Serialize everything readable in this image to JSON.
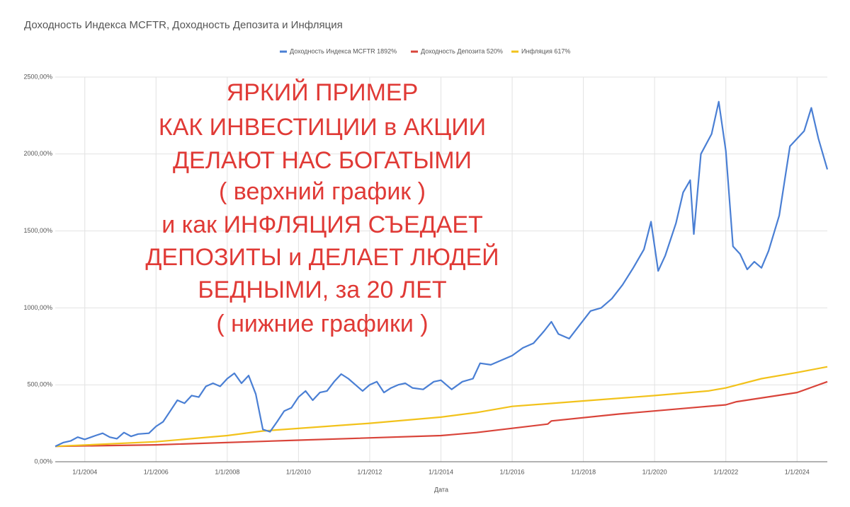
{
  "chart_data": {
    "type": "line",
    "title": "Доходность Индекса MCFTR, Доходность Депозита и Инфляция",
    "x_label": "Дата",
    "annotation": [
      "ЯРКИЙ ПРИМЕР",
      "КАК ИНВЕСТИЦИИ в АКЦИИ",
      "ДЕЛАЮТ НАС БОГАТЫМИ",
      "( верхний график )",
      "и как ИНФЛЯЦИЯ СЪЕДАЕТ",
      "ДЕПОЗИТЫ и ДЕЛАЕТ ЛЮДЕЙ",
      "БЕДНЫМИ, за 20 ЛЕТ",
      "( нижние графики )"
    ],
    "annotation_color": "#e03a36",
    "xlim": [
      2003.17,
      2024.85
    ],
    "xticks": [
      {
        "value": 2004,
        "label": "1/1/2004"
      },
      {
        "value": 2006,
        "label": "1/1/2006"
      },
      {
        "value": 2008,
        "label": "1/1/2008"
      },
      {
        "value": 2010,
        "label": "1/1/2010"
      },
      {
        "value": 2012,
        "label": "1/1/2012"
      },
      {
        "value": 2014,
        "label": "1/1/2014"
      },
      {
        "value": 2016,
        "label": "1/1/2016"
      },
      {
        "value": 2018,
        "label": "1/1/2018"
      },
      {
        "value": 2020,
        "label": "1/1/2020"
      },
      {
        "value": 2022,
        "label": "1/1/2022"
      },
      {
        "value": 2024,
        "label": "1/1/2024"
      }
    ],
    "ylim": [
      0,
      2500
    ],
    "yticks": [
      {
        "value": 0,
        "label": "0,00%"
      },
      {
        "value": 500,
        "label": "500,00%"
      },
      {
        "value": 1000,
        "label": "1000,00%"
      },
      {
        "value": 1500,
        "label": "1500,00%"
      },
      {
        "value": 2000,
        "label": "2000,00%"
      },
      {
        "value": 2500,
        "label": "2500,00%"
      }
    ],
    "grid": true,
    "legend": "top",
    "series": [
      {
        "name": "Доходность Индекса MCFTR 1892%",
        "color": "#4a7fd4",
        "x": [
          2003.17,
          2003.4,
          2003.6,
          2003.8,
          2004.0,
          2004.3,
          2004.5,
          2004.7,
          2004.9,
          2005.1,
          2005.3,
          2005.5,
          2005.8,
          2006.0,
          2006.2,
          2006.4,
          2006.6,
          2006.8,
          2007.0,
          2007.2,
          2007.4,
          2007.6,
          2007.8,
          2008.0,
          2008.2,
          2008.4,
          2008.6,
          2008.8,
          2009.0,
          2009.2,
          2009.4,
          2009.6,
          2009.8,
          2010.0,
          2010.2,
          2010.4,
          2010.6,
          2010.8,
          2011.0,
          2011.2,
          2011.4,
          2011.6,
          2011.8,
          2012.0,
          2012.2,
          2012.4,
          2012.6,
          2012.8,
          2013.0,
          2013.2,
          2013.5,
          2013.8,
          2014.0,
          2014.3,
          2014.6,
          2014.9,
          2015.1,
          2015.4,
          2015.7,
          2016.0,
          2016.3,
          2016.6,
          2016.9,
          2017.1,
          2017.3,
          2017.6,
          2017.9,
          2018.2,
          2018.5,
          2018.8,
          2019.1,
          2019.4,
          2019.7,
          2019.9,
          2020.1,
          2020.3,
          2020.6,
          2020.8,
          2021.0,
          2021.1,
          2021.3,
          2021.6,
          2021.8,
          2022.0,
          2022.2,
          2022.4,
          2022.6,
          2022.8,
          2023.0,
          2023.2,
          2023.5,
          2023.8,
          2024.0,
          2024.2,
          2024.4,
          2024.6,
          2024.85
        ],
        "values": [
          100,
          125,
          135,
          160,
          145,
          170,
          185,
          160,
          150,
          190,
          165,
          180,
          185,
          230,
          260,
          330,
          400,
          380,
          430,
          420,
          490,
          510,
          490,
          540,
          575,
          510,
          560,
          440,
          210,
          195,
          260,
          330,
          350,
          420,
          460,
          400,
          450,
          460,
          520,
          570,
          540,
          500,
          460,
          500,
          520,
          450,
          480,
          500,
          510,
          480,
          470,
          520,
          530,
          470,
          520,
          540,
          640,
          630,
          660,
          690,
          740,
          770,
          850,
          910,
          830,
          800,
          890,
          980,
          1000,
          1060,
          1150,
          1260,
          1380,
          1560,
          1240,
          1340,
          1550,
          1750,
          1830,
          1480,
          2000,
          2130,
          2340,
          2020,
          1400,
          1350,
          1250,
          1300,
          1260,
          1370,
          1600,
          2050,
          2100,
          2150,
          2300,
          2100,
          1900
        ]
      },
      {
        "name": "Доходность Депозита 520%",
        "color": "#d9443a",
        "x": [
          2003.17,
          2006,
          2010,
          2014,
          2015,
          2017,
          2017.1,
          2019,
          2021,
          2022,
          2022.3,
          2024,
          2024.85
        ],
        "values": [
          100,
          110,
          140,
          170,
          190,
          245,
          265,
          310,
          350,
          370,
          390,
          450,
          520
        ]
      },
      {
        "name": "Инфляция 617%",
        "color": "#f2c21b",
        "x": [
          2003.17,
          2006,
          2008,
          2009,
          2012,
          2014,
          2015,
          2016,
          2018,
          2020,
          2021.5,
          2022,
          2023,
          2024,
          2024.85
        ],
        "values": [
          100,
          130,
          170,
          200,
          250,
          290,
          320,
          360,
          395,
          430,
          460,
          480,
          540,
          580,
          617
        ]
      }
    ]
  }
}
